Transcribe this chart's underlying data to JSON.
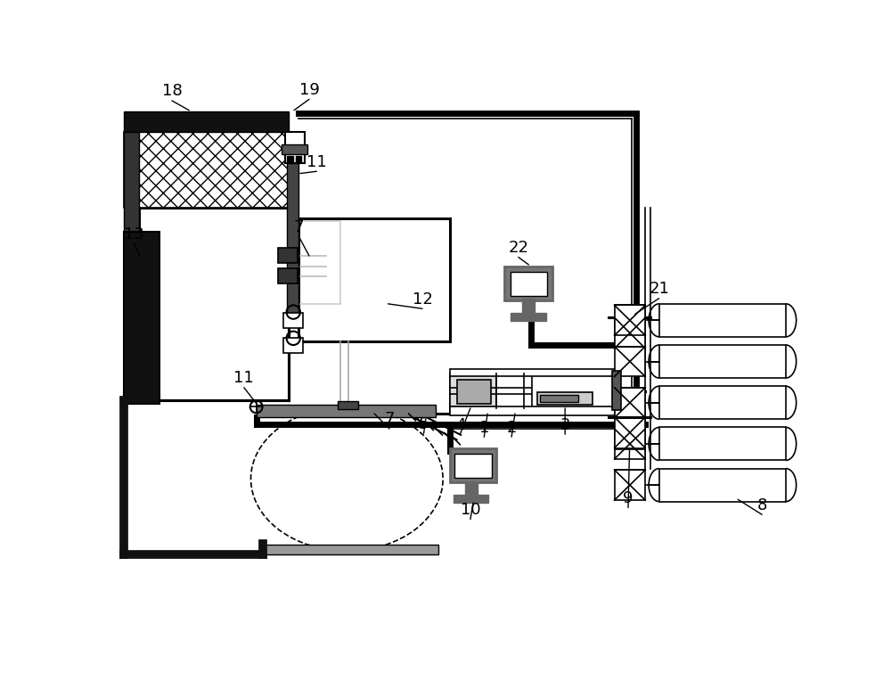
{
  "bg": "#ffffff",
  "black": "#000000",
  "dark": "#1a1a1a",
  "mgray": "#666666",
  "lgray": "#aaaaaa",
  "fs": 12,
  "lw_thick": 5.0,
  "lw_med": 2.2,
  "lw_thin": 1.2
}
